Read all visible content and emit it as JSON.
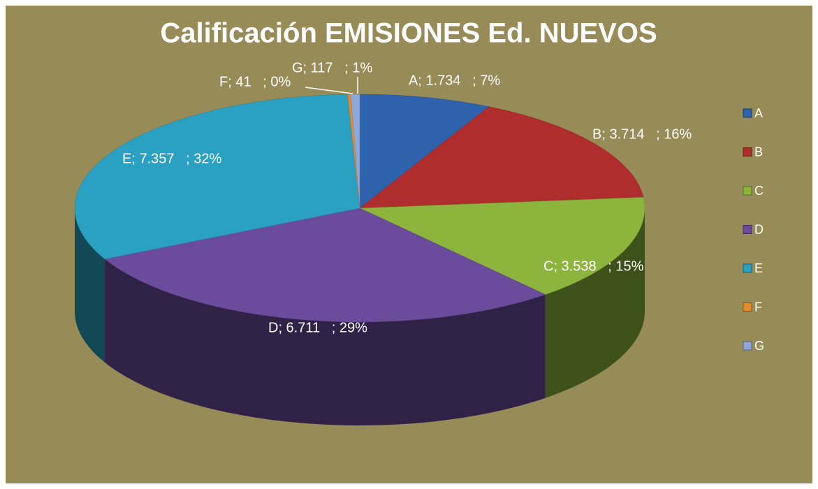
{
  "chart_data": {
    "type": "pie",
    "title": "Calificación EMISIONES Ed. NUEVOS",
    "categories": [
      "A",
      "B",
      "C",
      "D",
      "E",
      "F",
      "G"
    ],
    "values": [
      1734,
      3714,
      3538,
      6711,
      7357,
      41,
      117
    ],
    "value_labels": [
      "A; 1.734   ; 7%",
      "B; 3.714   ; 16%",
      "C; 3.538   ; 15%",
      "D; 6.711   ; 29%",
      "E; 7.357   ; 32%",
      "F; 41   ; 0%",
      "G; 117   ; 1%"
    ],
    "colors": [
      "#2f62ad",
      "#b02d2d",
      "#8db43c",
      "#6b4b9c",
      "#2aa0c2",
      "#e38b2c",
      "#8fa8da"
    ],
    "legend": "right"
  }
}
